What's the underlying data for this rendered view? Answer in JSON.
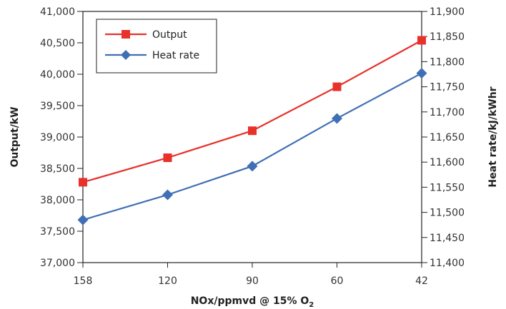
{
  "chart_data": {
    "type": "line",
    "categories": [
      "158",
      "120",
      "90",
      "60",
      "42"
    ],
    "xlabel": "NOx/ppmvd @ 15% O",
    "xlabel_subscript": "2",
    "ylabel_left": "Output/kW",
    "ylabel_right": "Heat rate/kJ/kWhr",
    "ylim_left": [
      37000,
      41000
    ],
    "ylim_right": [
      11400,
      11900
    ],
    "yticks_left": [
      "37,000",
      "37,500",
      "38,000",
      "38,500",
      "39,000",
      "39,500",
      "40,000",
      "40,500",
      "41,000"
    ],
    "yticks_right": [
      "11,400",
      "11,450",
      "11,500",
      "11,550",
      "11,600",
      "11,650",
      "11,700",
      "11,750",
      "11,800",
      "11,850",
      "11,900"
    ],
    "grid": false,
    "legend_position": "top-left",
    "series": [
      {
        "name": "Output",
        "axis": "left",
        "color": "#e8312a",
        "marker": "square",
        "values": [
          38280,
          38670,
          39100,
          39800,
          40540
        ]
      },
      {
        "name": "Heat rate",
        "axis": "right",
        "color": "#3f6fb5",
        "marker": "diamond",
        "values": [
          11485,
          11535,
          11592,
          11687,
          11777
        ]
      }
    ]
  }
}
